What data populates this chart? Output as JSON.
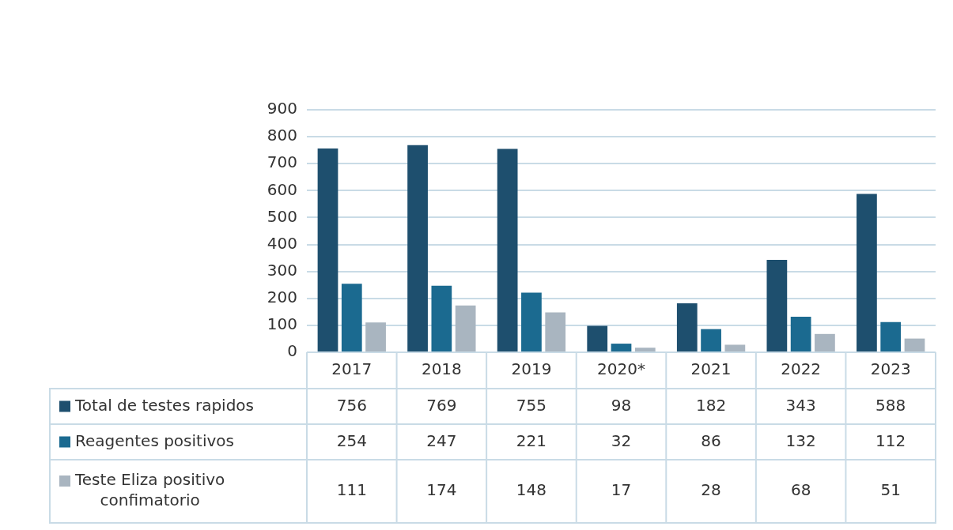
{
  "chart_data": {
    "type": "bar",
    "categories": [
      "2017",
      "2018",
      "2019",
      "2020*",
      "2021",
      "2022",
      "2023"
    ],
    "series": [
      {
        "name": "Total de testes rapidos",
        "color": "#1e4f6e",
        "values": [
          756,
          769,
          755,
          98,
          182,
          343,
          588
        ]
      },
      {
        "name": "Reagentes positivos",
        "color": "#1b6a90",
        "values": [
          254,
          247,
          221,
          32,
          86,
          132,
          112
        ]
      },
      {
        "name": "Teste Eliza positivo confimatorio",
        "color": "#a9b5c0",
        "values": [
          111,
          174,
          148,
          17,
          28,
          68,
          51
        ]
      }
    ],
    "ylim": [
      0,
      900
    ],
    "yticks": [
      0,
      100,
      200,
      300,
      400,
      500,
      600,
      700,
      800,
      900
    ],
    "grid": "y",
    "legend": "bottom",
    "data_labels": true
  }
}
